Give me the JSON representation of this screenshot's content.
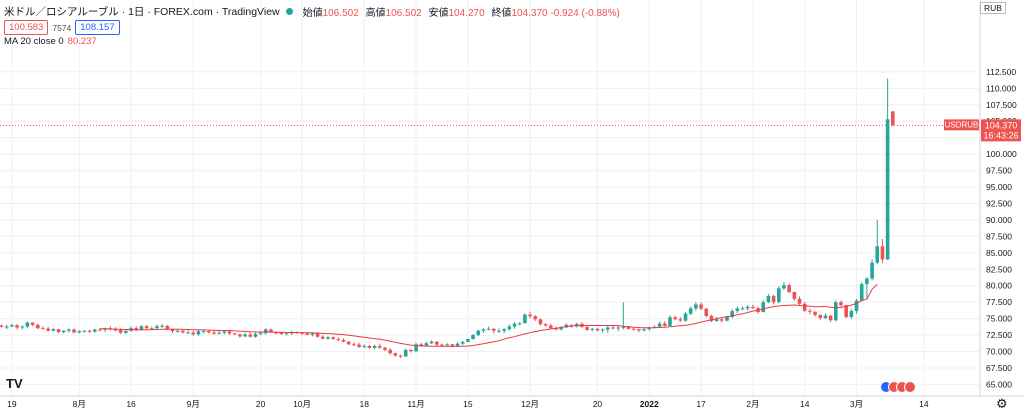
{
  "header": {
    "symbol": "米ドル／ロシアルーブル · 1日 · FOREX.com · TradingView",
    "ohlc": [
      {
        "key": "始値",
        "value": "106.502"
      },
      {
        "key": "高値",
        "value": "106.502"
      },
      {
        "key": "安値",
        "value": "104.270"
      },
      {
        "key": "終値",
        "value": "104.370 -0.924 (-0.88%)"
      }
    ],
    "bid": "100.583",
    "spread": "7574",
    "ask": "108.157",
    "ma_label": "MA 20 close 0",
    "ma_value": "80.237",
    "currency": "RUB"
  },
  "price_tag": {
    "symbol": "USDRUB",
    "price": "104.370",
    "countdown": "16:43:26"
  },
  "colors": {
    "up": "#26a69a",
    "down": "#ef5350",
    "ma": "#f23645",
    "grid": "#eef0f3",
    "axis_text": "#131722"
  },
  "chart_data": {
    "type": "candlestick",
    "title": "",
    "xlabel": "",
    "ylabel": "",
    "ylim": [
      64.0,
      113.5
    ],
    "y_ticks": [
      "65.000",
      "67.500",
      "70.000",
      "72.500",
      "75.000",
      "77.500",
      "80.000",
      "82.500",
      "85.000",
      "87.500",
      "90.000",
      "92.500",
      "95.000",
      "97.500",
      "100.000",
      "102.500",
      "105.000",
      "107.500",
      "110.000",
      "112.500"
    ],
    "x_ticks": [
      {
        "label": "19",
        "index": 2
      },
      {
        "label": "8月",
        "index": 15
      },
      {
        "label": "16",
        "index": 25
      },
      {
        "label": "9月",
        "index": 37
      },
      {
        "label": "20",
        "index": 50
      },
      {
        "label": "10月",
        "index": 58
      },
      {
        "label": "18",
        "index": 70
      },
      {
        "label": "11月",
        "index": 80
      },
      {
        "label": "15",
        "index": 90
      },
      {
        "label": "12月",
        "index": 102
      },
      {
        "label": "20",
        "index": 115
      },
      {
        "label": "2022",
        "index": 125
      },
      {
        "label": "17",
        "index": 135
      },
      {
        "label": "2月",
        "index": 145
      },
      {
        "label": "14",
        "index": 155
      },
      {
        "label": "3月",
        "index": 165
      },
      {
        "label": "14",
        "index": 178
      }
    ],
    "x_count": 190,
    "last_price": 104.37,
    "ma_period": 20,
    "ma_last": 80.237,
    "grid": true,
    "candles": [
      [
        73.95,
        74.1,
        73.65,
        73.75
      ],
      [
        73.75,
        74.05,
        73.4,
        73.8
      ],
      [
        73.8,
        74.2,
        73.75,
        74.0
      ],
      [
        74.0,
        74.15,
        73.35,
        73.65
      ],
      [
        73.65,
        73.95,
        73.35,
        73.8
      ],
      [
        73.8,
        74.55,
        73.5,
        74.4
      ],
      [
        74.4,
        74.45,
        73.85,
        74.05
      ],
      [
        74.05,
        74.25,
        73.4,
        73.55
      ],
      [
        73.55,
        73.85,
        73.4,
        73.5
      ],
      [
        73.5,
        73.75,
        73.05,
        73.15
      ],
      [
        73.15,
        73.55,
        73.05,
        73.4
      ],
      [
        73.4,
        73.45,
        72.8,
        72.95
      ],
      [
        72.95,
        73.25,
        72.75,
        73.15
      ],
      [
        73.15,
        73.5,
        72.9,
        73.35
      ],
      [
        73.35,
        73.5,
        72.75,
        72.9
      ],
      [
        72.9,
        73.25,
        72.75,
        73.1
      ],
      [
        73.1,
        73.25,
        72.9,
        73.15
      ],
      [
        73.15,
        73.3,
        72.8,
        73.0
      ],
      [
        73.0,
        73.45,
        72.85,
        73.35
      ],
      [
        73.35,
        73.55,
        73.1,
        73.3
      ],
      [
        73.3,
        73.65,
        72.95,
        73.55
      ],
      [
        73.55,
        73.85,
        73.2,
        73.35
      ],
      [
        73.35,
        73.7,
        73.05,
        73.3
      ],
      [
        73.3,
        73.55,
        72.65,
        72.85
      ],
      [
        72.85,
        73.25,
        72.65,
        73.15
      ],
      [
        73.15,
        73.8,
        73.0,
        73.55
      ],
      [
        73.55,
        73.85,
        73.1,
        73.25
      ],
      [
        73.25,
        74.0,
        73.2,
        73.85
      ],
      [
        73.85,
        74.05,
        73.4,
        73.55
      ],
      [
        73.55,
        73.8,
        73.35,
        73.55
      ],
      [
        73.55,
        74.1,
        73.4,
        73.85
      ],
      [
        73.85,
        74.2,
        73.6,
        73.9
      ],
      [
        73.9,
        74.05,
        73.25,
        73.45
      ],
      [
        73.45,
        73.5,
        72.8,
        73.1
      ],
      [
        73.1,
        73.4,
        72.85,
        73.15
      ],
      [
        73.15,
        73.35,
        72.75,
        72.9
      ],
      [
        72.9,
        73.25,
        72.75,
        72.9
      ],
      [
        72.9,
        73.15,
        72.4,
        72.6
      ],
      [
        72.6,
        73.35,
        72.4,
        73.1
      ],
      [
        73.1,
        73.35,
        72.75,
        73.1
      ],
      [
        73.1,
        73.25,
        72.7,
        72.9
      ],
      [
        72.9,
        73.2,
        72.55,
        72.7
      ],
      [
        72.7,
        73.2,
        72.6,
        72.85
      ],
      [
        72.85,
        73.25,
        72.6,
        73.05
      ],
      [
        73.05,
        73.15,
        72.5,
        72.75
      ],
      [
        72.75,
        72.85,
        72.5,
        72.6
      ],
      [
        72.6,
        72.7,
        72.1,
        72.3
      ],
      [
        72.3,
        72.85,
        72.2,
        72.6
      ],
      [
        72.6,
        72.9,
        72.1,
        72.25
      ],
      [
        72.25,
        72.9,
        72.1,
        72.65
      ],
      [
        72.65,
        73.1,
        72.5,
        72.8
      ],
      [
        72.8,
        73.55,
        72.55,
        73.35
      ],
      [
        73.35,
        73.5,
        72.85,
        72.9
      ],
      [
        72.9,
        73.0,
        72.65,
        72.85
      ],
      [
        72.85,
        72.9,
        72.55,
        72.65
      ],
      [
        72.65,
        72.95,
        72.45,
        72.75
      ],
      [
        72.75,
        73.15,
        72.55,
        72.95
      ],
      [
        72.95,
        73.05,
        72.65,
        72.85
      ],
      [
        72.85,
        72.9,
        72.5,
        72.75
      ],
      [
        72.75,
        72.9,
        72.45,
        72.55
      ],
      [
        72.55,
        72.95,
        72.3,
        72.75
      ],
      [
        72.75,
        72.95,
        72.1,
        72.25
      ],
      [
        72.25,
        72.45,
        71.85,
        71.95
      ],
      [
        71.95,
        72.35,
        71.8,
        72.15
      ],
      [
        72.15,
        72.3,
        71.8,
        71.9
      ],
      [
        71.9,
        72.15,
        71.55,
        71.75
      ],
      [
        71.75,
        72.0,
        71.4,
        71.5
      ],
      [
        71.5,
        71.55,
        71.0,
        71.1
      ],
      [
        71.1,
        71.4,
        70.85,
        71.05
      ],
      [
        71.05,
        71.35,
        70.55,
        70.7
      ],
      [
        70.7,
        71.1,
        70.5,
        70.85
      ],
      [
        70.85,
        71.0,
        70.45,
        70.55
      ],
      [
        70.55,
        71.05,
        70.35,
        70.85
      ],
      [
        70.85,
        71.2,
        70.4,
        70.6
      ],
      [
        70.6,
        70.7,
        70.05,
        70.25
      ],
      [
        70.25,
        70.55,
        69.5,
        69.75
      ],
      [
        69.75,
        69.85,
        69.2,
        69.4
      ],
      [
        69.4,
        69.5,
        69.0,
        69.25
      ],
      [
        69.25,
        70.45,
        69.2,
        70.25
      ],
      [
        70.25,
        70.35,
        69.85,
        70.05
      ],
      [
        70.05,
        71.35,
        69.95,
        71.1
      ],
      [
        71.1,
        71.3,
        70.7,
        70.9
      ],
      [
        70.9,
        71.5,
        70.75,
        71.25
      ],
      [
        71.25,
        71.7,
        71.15,
        71.5
      ],
      [
        71.5,
        71.6,
        70.8,
        71.05
      ],
      [
        71.05,
        71.2,
        70.8,
        70.95
      ],
      [
        70.95,
        71.25,
        70.75,
        71.1
      ],
      [
        71.1,
        71.15,
        70.65,
        70.85
      ],
      [
        70.85,
        71.45,
        70.75,
        71.2
      ],
      [
        71.2,
        71.6,
        70.95,
        71.45
      ],
      [
        71.45,
        71.95,
        71.45,
        71.9
      ],
      [
        71.9,
        72.65,
        71.85,
        72.5
      ],
      [
        72.5,
        73.35,
        72.35,
        73.15
      ],
      [
        73.15,
        73.55,
        72.8,
        73.35
      ],
      [
        73.35,
        73.8,
        73.2,
        73.45
      ],
      [
        73.45,
        73.6,
        72.75,
        73.15
      ],
      [
        73.15,
        73.5,
        72.85,
        73.15
      ],
      [
        73.15,
        73.55,
        72.8,
        73.4
      ],
      [
        73.4,
        74.15,
        73.15,
        73.8
      ],
      [
        73.8,
        74.45,
        73.45,
        74.25
      ],
      [
        74.25,
        74.45,
        73.95,
        74.3
      ],
      [
        74.3,
        75.8,
        74.3,
        75.6
      ],
      [
        75.6,
        76.05,
        75.05,
        75.35
      ],
      [
        75.35,
        75.55,
        74.65,
        74.9
      ],
      [
        74.9,
        75.0,
        73.95,
        74.15
      ],
      [
        74.15,
        74.3,
        73.8,
        73.95
      ],
      [
        73.95,
        74.25,
        73.35,
        73.55
      ],
      [
        73.55,
        73.8,
        73.2,
        73.35
      ],
      [
        73.35,
        73.85,
        73.2,
        73.65
      ],
      [
        73.65,
        74.3,
        73.6,
        74.05
      ],
      [
        74.05,
        74.15,
        73.6,
        73.85
      ],
      [
        73.85,
        74.35,
        73.65,
        74.2
      ],
      [
        74.2,
        74.45,
        73.6,
        73.75
      ],
      [
        73.75,
        73.85,
        73.1,
        73.3
      ],
      [
        73.3,
        73.6,
        73.05,
        73.45
      ],
      [
        73.45,
        73.6,
        73.05,
        73.2
      ],
      [
        73.2,
        73.55,
        72.9,
        73.35
      ],
      [
        73.35,
        73.85,
        72.85,
        73.65
      ],
      [
        73.65,
        74.0,
        73.35,
        73.55
      ],
      [
        73.55,
        73.9,
        73.1,
        73.65
      ],
      [
        73.65,
        77.5,
        73.35,
        73.75
      ],
      [
        73.75,
        73.9,
        73.3,
        73.45
      ],
      [
        73.45,
        73.6,
        73.2,
        73.4
      ],
      [
        73.4,
        73.45,
        72.95,
        73.2
      ],
      [
        73.2,
        73.55,
        73.1,
        73.4
      ],
      [
        73.4,
        73.8,
        73.15,
        73.6
      ],
      [
        73.6,
        74.0,
        73.5,
        73.75
      ],
      [
        73.75,
        74.55,
        73.7,
        74.25
      ],
      [
        74.25,
        74.6,
        73.8,
        73.9
      ],
      [
        73.9,
        75.5,
        73.9,
        75.2
      ],
      [
        75.2,
        75.45,
        74.75,
        74.9
      ],
      [
        74.9,
        75.25,
        74.5,
        74.7
      ],
      [
        74.7,
        76.05,
        74.5,
        75.75
      ],
      [
        75.75,
        76.85,
        75.55,
        76.55
      ],
      [
        76.55,
        77.5,
        76.2,
        77.15
      ],
      [
        77.15,
        77.5,
        76.3,
        76.5
      ],
      [
        76.5,
        76.65,
        75.2,
        75.4
      ],
      [
        75.4,
        75.6,
        74.45,
        74.65
      ],
      [
        74.65,
        75.25,
        74.5,
        74.9
      ],
      [
        74.9,
        75.05,
        74.4,
        74.7
      ],
      [
        74.7,
        75.45,
        74.6,
        75.25
      ],
      [
        75.25,
        76.45,
        75.05,
        76.15
      ],
      [
        76.15,
        76.85,
        75.85,
        76.55
      ],
      [
        76.55,
        76.85,
        76.25,
        76.55
      ],
      [
        76.55,
        77.05,
        76.2,
        76.8
      ],
      [
        76.8,
        77.1,
        76.45,
        76.6
      ],
      [
        76.6,
        76.85,
        75.75,
        76.0
      ],
      [
        76.0,
        77.8,
        75.95,
        77.5
      ],
      [
        77.5,
        78.75,
        77.35,
        78.45
      ],
      [
        78.45,
        78.6,
        77.15,
        77.5
      ],
      [
        77.5,
        79.95,
        77.35,
        79.6
      ],
      [
        79.6,
        80.55,
        79.35,
        80.1
      ],
      [
        80.1,
        80.35,
        78.85,
        79.05
      ],
      [
        79.05,
        79.1,
        77.7,
        78.0
      ],
      [
        78.0,
        78.35,
        76.95,
        77.25
      ],
      [
        77.25,
        77.55,
        76.0,
        76.2
      ],
      [
        76.2,
        76.55,
        75.65,
        76.05
      ],
      [
        76.05,
        76.1,
        75.3,
        75.55
      ],
      [
        75.55,
        75.65,
        74.8,
        75.1
      ],
      [
        75.1,
        75.8,
        74.95,
        75.45
      ],
      [
        75.45,
        75.55,
        74.5,
        74.75
      ],
      [
        74.75,
        77.75,
        74.6,
        77.5
      ],
      [
        77.5,
        77.75,
        76.8,
        77.05
      ],
      [
        77.05,
        77.1,
        75.1,
        75.25
      ],
      [
        75.25,
        76.45,
        75.0,
        76.15
      ],
      [
        76.15,
        78.0,
        75.75,
        77.75
      ],
      [
        77.75,
        80.55,
        77.6,
        80.25
      ],
      [
        80.25,
        81.3,
        78.0,
        81.1
      ],
      [
        81.1,
        84.0,
        80.8,
        83.5
      ],
      [
        83.5,
        90.0,
        83.3,
        86.0
      ],
      [
        86.0,
        87.1,
        83.4,
        84.0
      ],
      [
        84.0,
        111.5,
        83.9,
        105.3
      ],
      [
        106.502,
        106.502,
        104.27,
        104.37
      ]
    ],
    "ma20": [
      null,
      null,
      null,
      null,
      null,
      null,
      null,
      null,
      null,
      null,
      null,
      null,
      null,
      null,
      null,
      null,
      null,
      null,
      null,
      73.47,
      73.46,
      73.43,
      73.41,
      73.36,
      73.34,
      73.33,
      73.3,
      73.31,
      73.31,
      73.33,
      73.34,
      73.37,
      73.39,
      73.37,
      73.38,
      73.36,
      73.34,
      73.31,
      73.3,
      73.29,
      73.26,
      73.23,
      73.2,
      73.19,
      73.19,
      73.14,
      73.1,
      73.06,
      73.0,
      72.98,
      72.95,
      72.98,
      72.95,
      72.92,
      72.9,
      72.89,
      72.89,
      72.89,
      72.88,
      72.86,
      72.84,
      72.8,
      72.75,
      72.72,
      72.68,
      72.63,
      72.57,
      72.48,
      72.37,
      72.27,
      72.17,
      72.06,
      71.97,
      71.86,
      71.74,
      71.58,
      71.4,
      71.23,
      71.1,
      70.98,
      70.9,
      70.85,
      70.82,
      70.8,
      70.8,
      70.79,
      70.78,
      70.78,
      70.78,
      70.8,
      70.84,
      70.92,
      71.05,
      71.18,
      71.33,
      71.48,
      71.65,
      71.88,
      72.1,
      72.25,
      72.48,
      72.68,
      72.86,
      73.02,
      73.19,
      73.32,
      73.44,
      73.55,
      73.66,
      73.78,
      73.87,
      73.94,
      73.95,
      73.96,
      73.97,
      73.96,
      73.95,
      73.96,
      73.96,
      73.94,
      73.85,
      73.75,
      73.68,
      73.64,
      73.61,
      73.6,
      73.62,
      73.65,
      73.69,
      73.75,
      73.83,
      73.91,
      74.0,
      74.11,
      74.27,
      74.47,
      74.65,
      74.81,
      74.98,
      75.16,
      75.3,
      75.42,
      75.58,
      75.74,
      75.93,
      76.14,
      76.27,
      76.47,
      76.67,
      76.83,
      76.93,
      76.99,
      77.03,
      77.07,
      77.0,
      76.95,
      76.88,
      76.8,
      76.83,
      76.83,
      76.73,
      76.65,
      76.71,
      76.87,
      77.05,
      77.32,
      77.74,
      77.97,
      79.45,
      80.237
    ]
  }
}
